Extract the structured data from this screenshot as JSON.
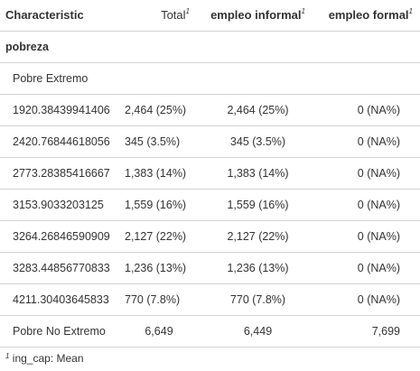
{
  "headers": {
    "characteristic": "Characteristic",
    "total": "Total",
    "informal": "empleo informal",
    "formal": "empleo formal",
    "footnote_mark": "1"
  },
  "group_label": "pobreza",
  "subgroup_label": "Pobre Extremo",
  "rows": [
    {
      "label": "1920.38439941406",
      "total": "2,464 (25%)",
      "informal": "2,464 (25%)",
      "formal": "0 (NA%)"
    },
    {
      "label": "2420.76844618056",
      "total": "345 (3.5%)",
      "informal": "345 (3.5%)",
      "formal": "0 (NA%)"
    },
    {
      "label": "2773.28385416667",
      "total": "1,383 (14%)",
      "informal": "1,383 (14%)",
      "formal": "0 (NA%)"
    },
    {
      "label": "3153.9033203125",
      "total": "1,559 (16%)",
      "informal": "1,559 (16%)",
      "formal": "0 (NA%)"
    },
    {
      "label": "3264.26846590909",
      "total": "2,127 (22%)",
      "informal": "2,127 (22%)",
      "formal": "0 (NA%)"
    },
    {
      "label": "3283.44856770833",
      "total": "1,236 (13%)",
      "informal": "1,236 (13%)",
      "formal": "0 (NA%)"
    },
    {
      "label": "4211.30403645833",
      "total": "770 (7.8%)",
      "informal": "770 (7.8%)",
      "formal": "0 (NA%)"
    }
  ],
  "last_row": {
    "label": "Pobre No Extremo",
    "total": "6,649",
    "informal": "6,449",
    "formal": "7,699"
  },
  "footnote": {
    "mark": "1",
    "text": "ing_cap: Mean"
  }
}
